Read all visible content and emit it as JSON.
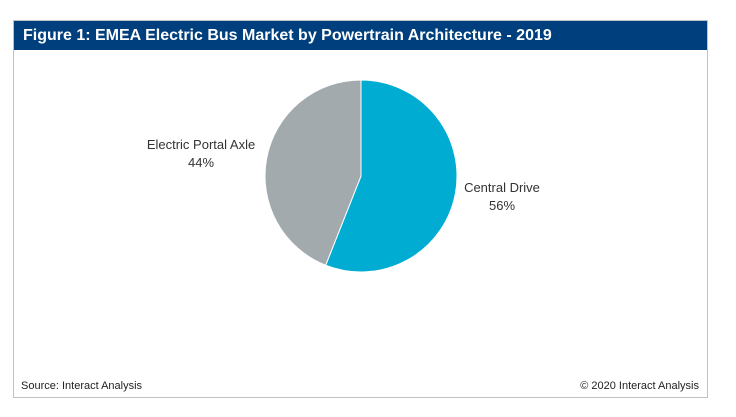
{
  "chart_data": {
    "type": "pie",
    "title": "Figure 1: EMEA Electric Bus Market by Powertrain Architecture - 2019",
    "slices": [
      {
        "label": "Central Drive",
        "value": 56,
        "value_label": "56%",
        "color": "#00acd1"
      },
      {
        "label": "Electric Portal Axle",
        "value": 44,
        "value_label": "44%",
        "color": "#a2aaae"
      }
    ],
    "start": "12 o'clock",
    "direction": "clockwise"
  },
  "footer": {
    "source": "Source: Interact Analysis",
    "copyright": "© 2020 Interact Analysis"
  },
  "colors": {
    "title_bar": "#003f7d",
    "title_text": "#ffffff"
  }
}
